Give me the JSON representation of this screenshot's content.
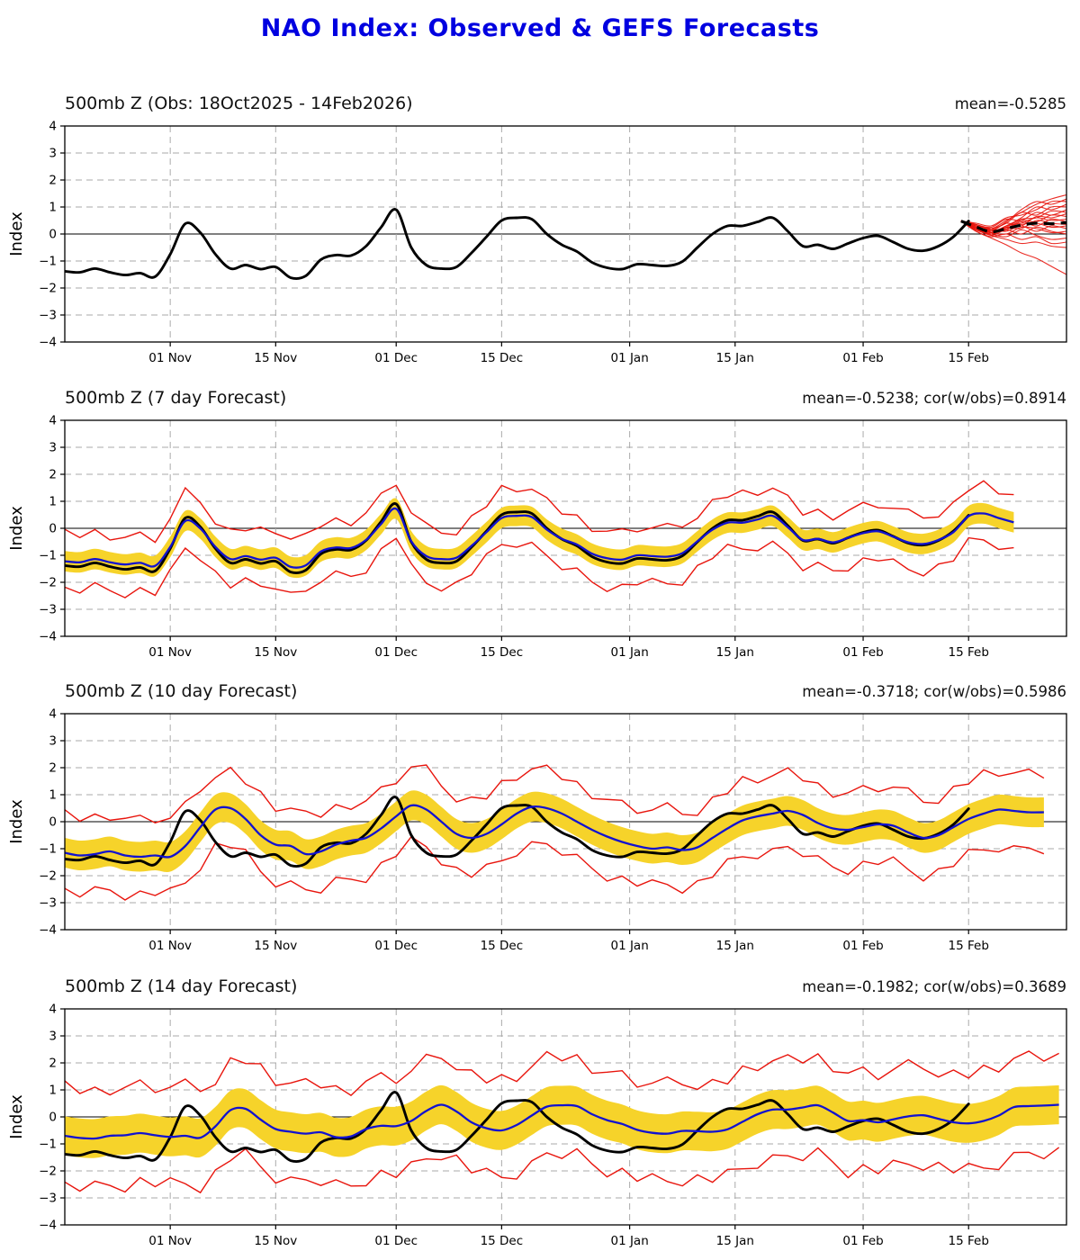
{
  "page_title": "NAO Index: Observed & GEFS Forecasts",
  "colors": {
    "title_blue": "#0000e0",
    "observed_black": "#000000",
    "ensemble_red": "#e8150d",
    "forecast_mean_blue": "#1212d0",
    "spread_band_yellow": "#f6d32a",
    "grid_gray": "#aaaaaa",
    "axis_black": "#000000"
  },
  "axis": {
    "ylabel": "Index",
    "yticks": [
      "4",
      "3",
      "2",
      "1",
      "0",
      "−1",
      "−2",
      "−3",
      "−4"
    ],
    "ytick_values": [
      4,
      3,
      2,
      1,
      0,
      -1,
      -2,
      -3,
      -4
    ],
    "ylim": [
      -4,
      4
    ],
    "x_start_date": "18 Oct 2025",
    "x_end_day": 133,
    "xticks": [
      {
        "label": "01 Nov",
        "day": 14
      },
      {
        "label": "15 Nov",
        "day": 28
      },
      {
        "label": "01 Dec",
        "day": 44
      },
      {
        "label": "15 Dec",
        "day": 58
      },
      {
        "label": "01 Jan",
        "day": 75
      },
      {
        "label": "15 Jan",
        "day": 89
      },
      {
        "label": "01 Feb",
        "day": 106
      },
      {
        "label": "15 Feb",
        "day": 120
      }
    ],
    "grid": "dashed horizontal and vertical, solid zero line"
  },
  "panels": [
    {
      "title": "500mb Z (Obs: 18Oct2025 - 14Feb2026)",
      "stats": "mean=-0.5285"
    },
    {
      "title": "500mb Z (7 day Forecast)",
      "stats": "mean=-0.5238; cor(w/obs)=0.8914"
    },
    {
      "title": "500mb Z (10 day Forecast)",
      "stats": "mean=-0.3718; cor(w/obs)=0.5986"
    },
    {
      "title": "500mb Z (14 day Forecast)",
      "stats": "mean=-0.1982; cor(w/obs)=0.3689"
    }
  ],
  "chart_data": [
    {
      "type": "line",
      "title": "500mb Z (Obs: 18Oct2025 - 14Feb2026)",
      "ylabel": "Index",
      "ylim": [
        -4,
        4
      ],
      "x_step_days": 2,
      "x_start_day": 0,
      "observed": [
        -1.38,
        -1.42,
        -1.28,
        -1.42,
        -1.52,
        -1.45,
        -1.58,
        -0.75,
        0.38,
        0.05,
        -0.75,
        -1.28,
        -1.15,
        -1.3,
        -1.22,
        -1.62,
        -1.55,
        -0.95,
        -0.78,
        -0.8,
        -0.45,
        0.25,
        0.9,
        -0.5,
        -1.15,
        -1.28,
        -1.22,
        -0.7,
        -0.1,
        0.5,
        0.6,
        0.55,
        0.0,
        -0.4,
        -0.65,
        -1.05,
        -1.25,
        -1.3,
        -1.12,
        -1.15,
        -1.18,
        -1.02,
        -0.5,
        0.0,
        0.3,
        0.3,
        0.45,
        0.6,
        0.1,
        -0.45,
        -0.4,
        -0.55,
        -0.35,
        -0.15,
        -0.07,
        -0.3,
        -0.55,
        -0.62,
        -0.45,
        -0.1,
        0.48
      ],
      "ensemble": {
        "x_start_day": 119,
        "x_step_days": 2,
        "mean_dashed": [
          0.48,
          0.26,
          0.08,
          0.2,
          0.33,
          0.4,
          0.38,
          0.42
        ],
        "members": [
          [
            0.48,
            0.35,
            0.2,
            0.5,
            0.8,
            1.1,
            1.3,
            1.45
          ],
          [
            0.48,
            0.3,
            0.15,
            0.45,
            0.9,
            1.2,
            1.1,
            1.3
          ],
          [
            0.48,
            0.4,
            0.3,
            0.6,
            0.7,
            0.9,
            1.2,
            1.2
          ],
          [
            0.48,
            0.3,
            0.1,
            0.3,
            0.6,
            1.0,
            0.9,
            1.1
          ],
          [
            0.48,
            0.25,
            0.2,
            0.4,
            0.8,
            0.7,
            1.0,
            1.0
          ],
          [
            0.48,
            0.35,
            0.25,
            0.55,
            0.5,
            0.8,
            0.7,
            0.9
          ],
          [
            0.48,
            0.3,
            0.05,
            0.25,
            0.55,
            0.6,
            0.85,
            0.8
          ],
          [
            0.48,
            0.2,
            0.1,
            0.4,
            0.3,
            0.65,
            0.6,
            0.75
          ],
          [
            0.48,
            0.35,
            0.15,
            0.2,
            0.5,
            0.45,
            0.7,
            0.65
          ],
          [
            0.48,
            0.25,
            0.0,
            0.3,
            0.4,
            0.6,
            0.5,
            0.55
          ],
          [
            0.48,
            0.3,
            0.1,
            0.15,
            0.45,
            0.3,
            0.55,
            0.45
          ],
          [
            0.48,
            0.2,
            0.05,
            0.25,
            0.2,
            0.5,
            0.4,
            0.35
          ],
          [
            0.48,
            0.3,
            0.2,
            0.1,
            0.35,
            0.4,
            0.25,
            0.3
          ],
          [
            0.48,
            0.15,
            0.0,
            0.2,
            0.3,
            0.1,
            0.3,
            0.2
          ],
          [
            0.48,
            0.25,
            0.05,
            0.0,
            0.25,
            0.2,
            0.05,
            0.1
          ],
          [
            0.48,
            0.2,
            -0.05,
            0.15,
            0.0,
            0.25,
            0.1,
            0.0
          ],
          [
            0.48,
            0.15,
            0.0,
            -0.1,
            0.15,
            -0.05,
            -0.2,
            -0.15
          ],
          [
            0.48,
            0.1,
            -0.1,
            0.0,
            -0.2,
            -0.1,
            -0.35,
            -0.3
          ],
          [
            0.48,
            0.2,
            -0.05,
            -0.2,
            -0.35,
            -0.3,
            -0.45,
            -0.5
          ],
          [
            0.48,
            0.1,
            -0.15,
            -0.4,
            -0.7,
            -0.9,
            -1.2,
            -1.5
          ]
        ]
      }
    },
    {
      "type": "line+band",
      "title": "500mb Z (7 day Forecast)",
      "observed_same_as_panel": 0,
      "x_step_days": 2,
      "x_start_day": 0,
      "forecast_mean": [
        -1.22,
        -1.26,
        -1.14,
        -1.26,
        -1.34,
        -1.28,
        -1.39,
        -0.69,
        0.27,
        -0.01,
        -0.69,
        -1.14,
        -1.03,
        -1.16,
        -1.09,
        -1.43,
        -1.37,
        -0.86,
        -0.71,
        -0.73,
        -0.43,
        0.16,
        0.72,
        -0.48,
        -1.03,
        -1.14,
        -1.09,
        -0.65,
        -0.14,
        0.38,
        0.46,
        0.42,
        -0.05,
        -0.39,
        -0.6,
        -0.94,
        -1.11,
        -1.16,
        -1.0,
        -1.03,
        -1.05,
        -0.92,
        -0.48,
        -0.05,
        0.21,
        0.21,
        0.33,
        0.46,
        0.04,
        -0.43,
        -0.39,
        -0.52,
        -0.35,
        -0.18,
        -0.11,
        -0.31,
        -0.52,
        -0.58,
        -0.43,
        -0.14,
        0.45,
        0.55,
        0.38,
        0.22
      ],
      "band_halfwidth": 0.38,
      "envelope_halfwidth": 0.78,
      "envelope_noise": 0.45
    },
    {
      "type": "line+band",
      "title": "500mb Z (10 day Forecast)",
      "observed_same_as_panel": 0,
      "x_step_days": 2,
      "x_start_day": 0,
      "forecast_mean": [
        -1.15,
        -1.25,
        -1.2,
        -1.1,
        -1.25,
        -1.3,
        -1.25,
        -1.3,
        -0.9,
        -0.2,
        0.45,
        0.5,
        0.1,
        -0.5,
        -0.85,
        -0.9,
        -1.2,
        -1.1,
        -0.85,
        -0.7,
        -0.6,
        -0.25,
        0.2,
        0.6,
        0.45,
        0.0,
        -0.45,
        -0.6,
        -0.45,
        -0.1,
        0.3,
        0.55,
        0.5,
        0.3,
        0.0,
        -0.3,
        -0.55,
        -0.75,
        -0.9,
        -1.0,
        -0.95,
        -1.05,
        -0.95,
        -0.6,
        -0.25,
        0.05,
        0.2,
        0.3,
        0.4,
        0.25,
        -0.05,
        -0.25,
        -0.3,
        -0.2,
        -0.1,
        -0.15,
        -0.4,
        -0.6,
        -0.5,
        -0.2,
        0.1,
        0.3,
        0.45,
        0.4,
        0.35,
        0.35
      ],
      "band_halfwidth": 0.55,
      "envelope_halfwidth": 1.1,
      "envelope_noise": 0.55
    },
    {
      "type": "line+band",
      "title": "500mb Z (14 day Forecast)",
      "observed_same_as_panel": 0,
      "x_step_days": 2,
      "x_start_day": 0,
      "forecast_mean": [
        -0.7,
        -0.78,
        -0.8,
        -0.7,
        -0.68,
        -0.6,
        -0.68,
        -0.74,
        -0.7,
        -0.77,
        -0.35,
        0.25,
        0.3,
        -0.1,
        -0.45,
        -0.55,
        -0.62,
        -0.57,
        -0.75,
        -0.72,
        -0.45,
        -0.33,
        -0.34,
        -0.15,
        0.22,
        0.45,
        0.2,
        -0.2,
        -0.42,
        -0.5,
        -0.3,
        0.05,
        0.38,
        0.43,
        0.4,
        0.1,
        -0.12,
        -0.26,
        -0.48,
        -0.59,
        -0.62,
        -0.52,
        -0.53,
        -0.55,
        -0.46,
        -0.18,
        0.1,
        0.27,
        0.27,
        0.35,
        0.43,
        0.16,
        -0.15,
        -0.12,
        -0.2,
        -0.09,
        0.02,
        0.06,
        -0.07,
        -0.2,
        -0.24,
        -0.15,
        0.05,
        0.36,
        0.4,
        0.42,
        0.45
      ],
      "band_halfwidth": 0.72,
      "envelope_halfwidth": 1.45,
      "envelope_noise": 0.65
    }
  ],
  "envelope_noise_pattern": {
    "upper": [
      0.9,
      0.3,
      0.7,
      0.1,
      0.5,
      0.8,
      0.2,
      0.6,
      1.0,
      0.4,
      0.15,
      0.75,
      0.35,
      0.95,
      0.25,
      0.55
    ],
    "lower": [
      0.4,
      0.8,
      0.2,
      0.6,
      1.0,
      0.3,
      0.7,
      0.1,
      0.5,
      0.9,
      0.25,
      0.65,
      0.05,
      0.45,
      0.85,
      0.35
    ]
  }
}
